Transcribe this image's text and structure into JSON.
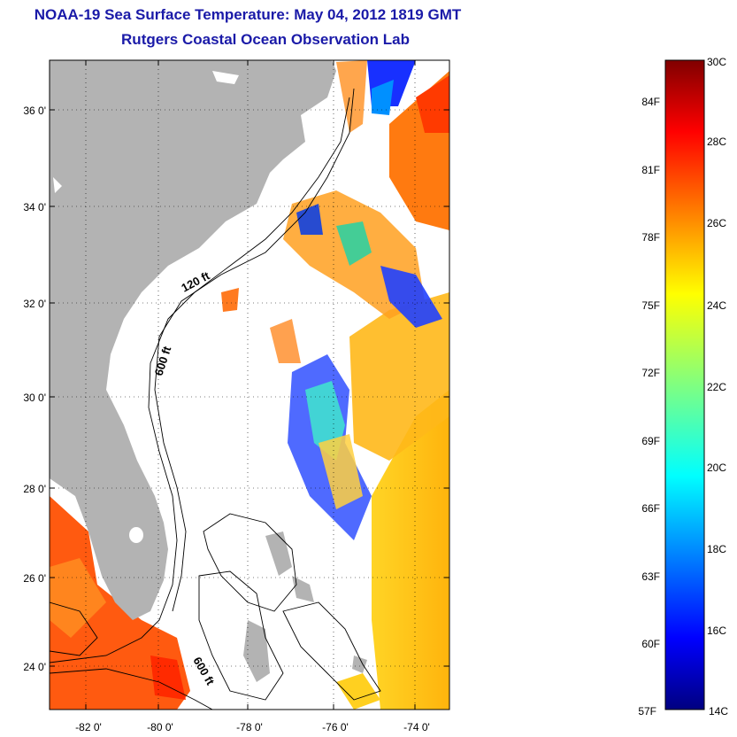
{
  "titles": {
    "line1": "NOAA-19 Sea Surface Temperature:  May 04, 2012 1819 GMT",
    "line2": "Rutgers Coastal Ocean Observation Lab"
  },
  "map": {
    "lat_labels": [
      "36 0'",
      "34 0'",
      "32 0'",
      "30 0'",
      "28 0'",
      "26 0'",
      "24 0'"
    ],
    "lon_labels": [
      "-82 0'",
      "-80 0'",
      "-78 0'",
      "-76 0'",
      "-74 0'"
    ],
    "contour_labels": [
      "120 ft",
      "600 ft",
      "600 ft"
    ],
    "colors": {
      "land": "#b3b3b3",
      "ocean_nodata": "#ffffff",
      "contour": "#000000",
      "grid": "#000000"
    }
  },
  "colorbar": {
    "celsius_labels": [
      "30C",
      "28C",
      "26C",
      "24C",
      "22C",
      "20C",
      "18C",
      "16C",
      "14C"
    ],
    "fahrenheit_labels": [
      "84F",
      "81F",
      "78F",
      "75F",
      "72F",
      "69F",
      "66F",
      "63F",
      "60F",
      "57F"
    ],
    "range_c": [
      14,
      30
    ],
    "colormap": "jet",
    "colors": [
      "#000080",
      "#0000ff",
      "#0080ff",
      "#00ffff",
      "#80ff80",
      "#ffff00",
      "#ff8000",
      "#ff0000",
      "#800000"
    ]
  }
}
